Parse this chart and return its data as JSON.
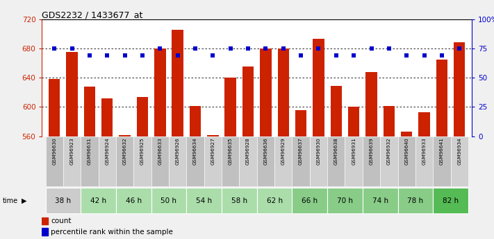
{
  "title": "GDS2232 / 1433677_at",
  "samples": [
    "GSM96630",
    "GSM96923",
    "GSM96631",
    "GSM96924",
    "GSM96632",
    "GSM96925",
    "GSM96633",
    "GSM96926",
    "GSM96634",
    "GSM96927",
    "GSM96635",
    "GSM96928",
    "GSM96636",
    "GSM96929",
    "GSM96637",
    "GSM96930",
    "GSM96638",
    "GSM96931",
    "GSM96639",
    "GSM96932",
    "GSM96640",
    "GSM96933",
    "GSM96641",
    "GSM96934"
  ],
  "time_groups": [
    {
      "label": "38 h",
      "indices": [
        0,
        1
      ],
      "color": "#cccccc"
    },
    {
      "label": "42 h",
      "indices": [
        2,
        3
      ],
      "color": "#aaddaa"
    },
    {
      "label": "46 h",
      "indices": [
        4,
        5
      ],
      "color": "#aaddaa"
    },
    {
      "label": "50 h",
      "indices": [
        6,
        7
      ],
      "color": "#aaddaa"
    },
    {
      "label": "54 h",
      "indices": [
        8,
        9
      ],
      "color": "#aaddaa"
    },
    {
      "label": "58 h",
      "indices": [
        10,
        11
      ],
      "color": "#aaddaa"
    },
    {
      "label": "62 h",
      "indices": [
        12,
        13
      ],
      "color": "#aaddaa"
    },
    {
      "label": "66 h",
      "indices": [
        14,
        15
      ],
      "color": "#88cc88"
    },
    {
      "label": "70 h",
      "indices": [
        16,
        17
      ],
      "color": "#88cc88"
    },
    {
      "label": "74 h",
      "indices": [
        18,
        19
      ],
      "color": "#88cc88"
    },
    {
      "label": "78 h",
      "indices": [
        20,
        21
      ],
      "color": "#88cc88"
    },
    {
      "label": "82 h",
      "indices": [
        22,
        23
      ],
      "color": "#55bb55"
    }
  ],
  "counts": [
    638,
    675,
    628,
    612,
    562,
    614,
    680,
    705,
    601,
    562,
    640,
    655,
    680,
    680,
    596,
    693,
    629,
    600,
    648,
    601,
    566,
    593,
    665,
    688
  ],
  "percentile_ranks": [
    75,
    75,
    69,
    69,
    69,
    69,
    75,
    69,
    75,
    69,
    75,
    75,
    75,
    75,
    69,
    75,
    69,
    69,
    75,
    75,
    69,
    69,
    69,
    75
  ],
  "ylim_left": [
    560,
    720
  ],
  "ylim_right": [
    0,
    100
  ],
  "yticks_left": [
    560,
    600,
    640,
    680,
    720
  ],
  "yticks_right": [
    0,
    25,
    50,
    75,
    100
  ],
  "bar_color": "#cc2200",
  "dot_color": "#0000cc",
  "background_color": "#f0f0f0",
  "plot_bg_color": "#ffffff",
  "legend_count_color": "#cc2200",
  "legend_pct_color": "#0000cc"
}
